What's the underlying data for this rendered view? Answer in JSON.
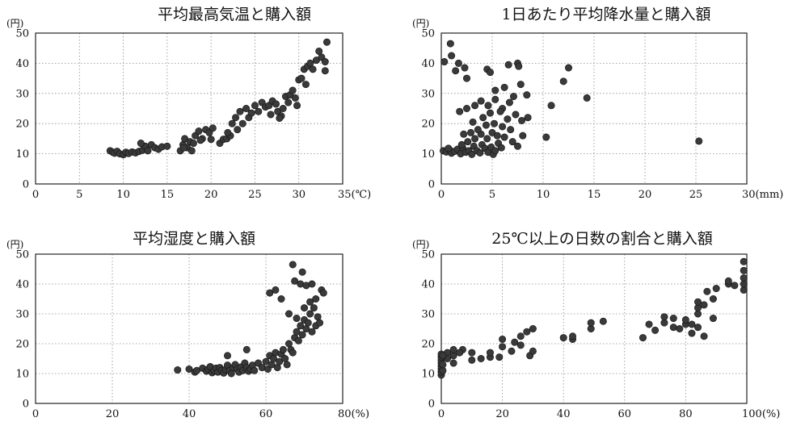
{
  "chart_data": [
    {
      "type": "scatter",
      "title": "平均最高気温と購入額",
      "ylabel": "(円)",
      "xlabel": "",
      "xlim": [
        0,
        35
      ],
      "ylim": [
        0,
        50
      ],
      "xticks": [
        "0",
        "5",
        "10",
        "15",
        "20",
        "25",
        "30",
        "35(℃)"
      ],
      "yticks": [
        "0",
        "10",
        "20",
        "30",
        "40",
        "50"
      ],
      "grid": true,
      "marker_color": "#3a3a3a",
      "points": [
        [
          8.5,
          11
        ],
        [
          8.8,
          10.5
        ],
        [
          9,
          10.2
        ],
        [
          9.3,
          10.8
        ],
        [
          9.6,
          10
        ],
        [
          10,
          9.7
        ],
        [
          10.3,
          10.5
        ],
        [
          10.6,
          10.1
        ],
        [
          11,
          10.6
        ],
        [
          11.4,
          10.3
        ],
        [
          11.8,
          10.8
        ],
        [
          12.2,
          11.2
        ],
        [
          12.5,
          12.5
        ],
        [
          12.8,
          11
        ],
        [
          13.2,
          13
        ],
        [
          13.6,
          12
        ],
        [
          14,
          11.5
        ],
        [
          14.4,
          12.3
        ],
        [
          15,
          12.5
        ],
        [
          12,
          13.5
        ],
        [
          16.5,
          11
        ],
        [
          16.8,
          13
        ],
        [
          17,
          15
        ],
        [
          17.3,
          12
        ],
        [
          17.6,
          14
        ],
        [
          18,
          13.5
        ],
        [
          18.2,
          16
        ],
        [
          18.6,
          17.5
        ],
        [
          19,
          15
        ],
        [
          19.4,
          18
        ],
        [
          19.8,
          17
        ],
        [
          20.2,
          18.5
        ],
        [
          16.9,
          12
        ],
        [
          17.8,
          11
        ],
        [
          18.8,
          14.5
        ],
        [
          20,
          14.8
        ],
        [
          21,
          13.5
        ],
        [
          21.4,
          14.8
        ],
        [
          21.8,
          15
        ],
        [
          22.2,
          16
        ],
        [
          22.4,
          20
        ],
        [
          22.8,
          22
        ],
        [
          23,
          18
        ],
        [
          23.3,
          24
        ],
        [
          23.6,
          20
        ],
        [
          24,
          25
        ],
        [
          24.3,
          22
        ],
        [
          24.6,
          23.5
        ],
        [
          25,
          26
        ],
        [
          25.4,
          24
        ],
        [
          25.8,
          27
        ],
        [
          26.2,
          25.5
        ],
        [
          26.6,
          26
        ],
        [
          27,
          27.5
        ],
        [
          27.4,
          26.5
        ],
        [
          27.6,
          24
        ],
        [
          28,
          22.5
        ],
        [
          28.2,
          25
        ],
        [
          28.5,
          29
        ],
        [
          28.8,
          27
        ],
        [
          29,
          29.5
        ],
        [
          29.3,
          31
        ],
        [
          29.6,
          28.5
        ],
        [
          29.8,
          26
        ],
        [
          30,
          34.5
        ],
        [
          30.3,
          35
        ],
        [
          30.6,
          38
        ],
        [
          31,
          39
        ],
        [
          31.3,
          40
        ],
        [
          31.6,
          38
        ],
        [
          32,
          41
        ],
        [
          32.3,
          44
        ],
        [
          32.6,
          42
        ],
        [
          33,
          40.5
        ],
        [
          33.2,
          47
        ],
        [
          33,
          37.5
        ],
        [
          30.8,
          33
        ],
        [
          26.8,
          23
        ],
        [
          27.8,
          21.8
        ],
        [
          21.9,
          17
        ]
      ]
    },
    {
      "type": "scatter",
      "title": "1日あたり平均降水量と購入額",
      "ylabel": "(円)",
      "xlabel": "",
      "xlim": [
        0,
        30
      ],
      "ylim": [
        0,
        50
      ],
      "xticks": [
        "0",
        "5",
        "10",
        "15",
        "20",
        "25",
        "30(mm)"
      ],
      "yticks": [
        "0",
        "10",
        "20",
        "30",
        "40",
        "50"
      ],
      "grid": true,
      "marker_color": "#3a3a3a",
      "points": [
        [
          0.2,
          11
        ],
        [
          0.5,
          10.6
        ],
        [
          0.8,
          11.3
        ],
        [
          1,
          10.2
        ],
        [
          1.3,
          10.8
        ],
        [
          1.6,
          11.5
        ],
        [
          1.9,
          10
        ],
        [
          2.1,
          12
        ],
        [
          2.4,
          10.5
        ],
        [
          2.7,
          11
        ],
        [
          3,
          9.8
        ],
        [
          3.2,
          12.5
        ],
        [
          3.5,
          11
        ],
        [
          3.8,
          10.3
        ],
        [
          4,
          13
        ],
        [
          4.3,
          11.8
        ],
        [
          4.6,
          10.5
        ],
        [
          4.9,
          12.2
        ],
        [
          5.1,
          9.8
        ],
        [
          5.3,
          11
        ],
        [
          5.6,
          13.5
        ],
        [
          5.9,
          12
        ],
        [
          2,
          13
        ],
        [
          2.6,
          14
        ],
        [
          3.3,
          15
        ],
        [
          3.9,
          16.5
        ],
        [
          4.5,
          15
        ],
        [
          5,
          17
        ],
        [
          5.5,
          16
        ],
        [
          6.2,
          15.5
        ],
        [
          7,
          14
        ],
        [
          7.5,
          12.5
        ],
        [
          8,
          16
        ],
        [
          6.8,
          18
        ],
        [
          6,
          19
        ],
        [
          5.2,
          20
        ],
        [
          4.4,
          19.5
        ],
        [
          3.6,
          18
        ],
        [
          2.9,
          17
        ],
        [
          2.2,
          16.5
        ],
        [
          1.8,
          24
        ],
        [
          2.5,
          25
        ],
        [
          3.3,
          26
        ],
        [
          3.9,
          27.5
        ],
        [
          4.6,
          26
        ],
        [
          5.3,
          28
        ],
        [
          6,
          25
        ],
        [
          6.7,
          27
        ],
        [
          7.3,
          23
        ],
        [
          7.9,
          21
        ],
        [
          5.8,
          24
        ],
        [
          4.1,
          22
        ],
        [
          7.5,
          40
        ],
        [
          7.6,
          39
        ],
        [
          6.6,
          39.5
        ],
        [
          0.3,
          40.5
        ],
        [
          1,
          42.5
        ],
        [
          0.9,
          46.5
        ],
        [
          1.7,
          40
        ],
        [
          2.3,
          38.5
        ],
        [
          2.5,
          35
        ],
        [
          1.4,
          37.5
        ],
        [
          4.5,
          38
        ],
        [
          4.8,
          37
        ],
        [
          5.3,
          31
        ],
        [
          6.2,
          32
        ],
        [
          7.8,
          33
        ],
        [
          8.4,
          29.5
        ],
        [
          10.3,
          15.5
        ],
        [
          10.8,
          26
        ],
        [
          12,
          34
        ],
        [
          12.5,
          38.5
        ],
        [
          14.3,
          28.5
        ],
        [
          25.3,
          14.2
        ],
        [
          8.5,
          22
        ],
        [
          3.1,
          20.5
        ],
        [
          4.8,
          23.5
        ],
        [
          6.5,
          21.5
        ],
        [
          7.1,
          29
        ],
        [
          0.7,
          11.8
        ]
      ]
    },
    {
      "type": "scatter",
      "title": "平均湿度と購入額",
      "ylabel": "(円)",
      "xlabel": "",
      "xlim": [
        0,
        80
      ],
      "ylim": [
        0,
        50
      ],
      "xticks": [
        "0",
        "20",
        "40",
        "60",
        "80(%)"
      ],
      "yticks": [
        "0",
        "10",
        "20",
        "30",
        "40",
        "50"
      ],
      "grid": true,
      "marker_color": "#3a3a3a",
      "points": [
        [
          37,
          11.2
        ],
        [
          40,
          11.5
        ],
        [
          41.5,
          10.5
        ],
        [
          42,
          11
        ],
        [
          43.5,
          11.8
        ],
        [
          44.5,
          10.8
        ],
        [
          45,
          11.5
        ],
        [
          45.5,
          12.3
        ],
        [
          46,
          10.3
        ],
        [
          46.5,
          11
        ],
        [
          47,
          11.8
        ],
        [
          47.5,
          10.5
        ],
        [
          48,
          12
        ],
        [
          48.5,
          11
        ],
        [
          49,
          10.2
        ],
        [
          49.5,
          11.3
        ],
        [
          50,
          12.8
        ],
        [
          50.5,
          11
        ],
        [
          51,
          10
        ],
        [
          51.5,
          12
        ],
        [
          52,
          13
        ],
        [
          52.5,
          11.5
        ],
        [
          53,
          10.5
        ],
        [
          53.5,
          12.2
        ],
        [
          54,
          11
        ],
        [
          54.5,
          13.5
        ],
        [
          55,
          12
        ],
        [
          55.5,
          10.8
        ],
        [
          56,
          11.5
        ],
        [
          56.5,
          12.8
        ],
        [
          57,
          11
        ],
        [
          58,
          13.5
        ],
        [
          59,
          12
        ],
        [
          60,
          14
        ],
        [
          60.5,
          11.5
        ],
        [
          61,
          16
        ],
        [
          61.5,
          13
        ],
        [
          62,
          15
        ],
        [
          62.5,
          17
        ],
        [
          63,
          12
        ],
        [
          63.5,
          14
        ],
        [
          64,
          16.5
        ],
        [
          64.5,
          18
        ],
        [
          65,
          15
        ],
        [
          65.5,
          13
        ],
        [
          66,
          20
        ],
        [
          66.5,
          18
        ],
        [
          67,
          17
        ],
        [
          67.5,
          22
        ],
        [
          68,
          24
        ],
        [
          68.5,
          21
        ],
        [
          69,
          26
        ],
        [
          69.5,
          23
        ],
        [
          70,
          28
        ],
        [
          70.5,
          25
        ],
        [
          71,
          27
        ],
        [
          71.5,
          30
        ],
        [
          72,
          24
        ],
        [
          72.5,
          32
        ],
        [
          73,
          26
        ],
        [
          73.5,
          29
        ],
        [
          74,
          27
        ],
        [
          74.5,
          38
        ],
        [
          75,
          37
        ],
        [
          69,
          40
        ],
        [
          67.5,
          41
        ],
        [
          67,
          46.5
        ],
        [
          69.5,
          44
        ],
        [
          70.5,
          39.5
        ],
        [
          72,
          40
        ],
        [
          61,
          37
        ],
        [
          62.5,
          38
        ],
        [
          64,
          35
        ],
        [
          66,
          30
        ],
        [
          68,
          28.5
        ],
        [
          70,
          32
        ],
        [
          71.5,
          34
        ],
        [
          73,
          35
        ],
        [
          55,
          18
        ],
        [
          50,
          16
        ]
      ]
    },
    {
      "type": "scatter",
      "title": "25℃以上の日数の割合と購入額",
      "ylabel": "(円)",
      "xlabel": "",
      "xlim": [
        0,
        100
      ],
      "ylim": [
        0,
        50
      ],
      "xticks": [
        "0",
        "20",
        "40",
        "60",
        "80",
        "100(%)"
      ],
      "yticks": [
        "0",
        "10",
        "20",
        "30",
        "40",
        "50"
      ],
      "grid": true,
      "marker_color": "#3a3a3a",
      "points": [
        [
          0,
          9.5
        ],
        [
          0,
          10.5
        ],
        [
          0,
          11.5
        ],
        [
          0,
          12.5
        ],
        [
          0,
          13.5
        ],
        [
          0,
          14.5
        ],
        [
          0,
          15.5
        ],
        [
          0,
          16.5
        ],
        [
          0.5,
          11
        ],
        [
          0.5,
          13
        ],
        [
          4,
          13.5
        ],
        [
          4,
          16
        ],
        [
          4,
          18
        ],
        [
          7,
          18
        ],
        [
          10,
          14.5
        ],
        [
          10,
          17
        ],
        [
          13,
          15
        ],
        [
          16,
          15.5
        ],
        [
          16,
          17
        ],
        [
          19,
          15.5
        ],
        [
          20,
          19
        ],
        [
          20,
          21.5
        ],
        [
          23,
          17.5
        ],
        [
          24,
          20.5
        ],
        [
          26,
          19.5
        ],
        [
          26,
          22.5
        ],
        [
          28,
          24
        ],
        [
          29,
          16
        ],
        [
          30,
          17.5
        ],
        [
          30,
          25
        ],
        [
          40,
          22
        ],
        [
          43,
          21.5
        ],
        [
          43,
          22.5
        ],
        [
          49,
          25
        ],
        [
          49,
          27
        ],
        [
          53,
          27.5
        ],
        [
          66,
          22
        ],
        [
          68,
          26.5
        ],
        [
          70,
          24.5
        ],
        [
          73,
          27
        ],
        [
          73,
          29
        ],
        [
          76,
          25.5
        ],
        [
          78,
          25
        ],
        [
          80,
          26.5
        ],
        [
          80,
          28
        ],
        [
          82,
          23.5
        ],
        [
          84,
          25.5
        ],
        [
          84,
          30
        ],
        [
          84,
          32
        ],
        [
          84,
          34
        ],
        [
          86,
          22.5
        ],
        [
          86,
          33
        ],
        [
          87,
          37.5
        ],
        [
          89,
          35
        ],
        [
          89,
          28.5
        ],
        [
          90,
          38.5
        ],
        [
          94,
          40
        ],
        [
          94,
          41
        ],
        [
          96,
          39.5
        ],
        [
          99,
          38
        ],
        [
          99,
          40
        ],
        [
          99,
          42
        ],
        [
          99,
          44.5
        ],
        [
          99,
          47.5
        ],
        [
          82,
          26.5
        ],
        [
          76,
          28.5
        ],
        [
          2,
          17
        ],
        [
          2,
          15
        ],
        [
          0.5,
          16
        ],
        [
          6,
          17
        ]
      ]
    }
  ]
}
